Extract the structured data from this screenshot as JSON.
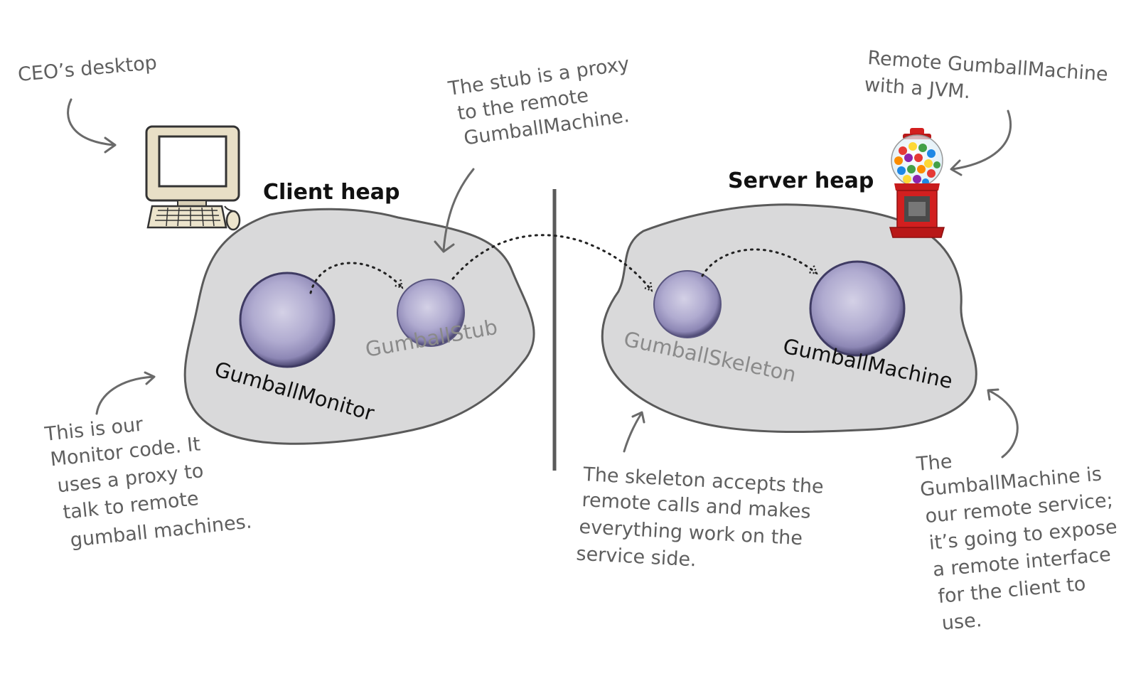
{
  "labels": {
    "ceo_desktop": "CEO’s desktop",
    "stub_note": [
      "The stub is a proxy",
      "to the remote",
      "GumballMachine."
    ],
    "remote_note": [
      "Remote GumballMachine",
      "with a JVM."
    ],
    "client_heap": "Client heap",
    "server_heap": "Server heap",
    "monitor_note": [
      "This is our",
      "Monitor code. It",
      "uses a proxy to",
      "talk to remote",
      "gumball machines."
    ],
    "skeleton_note": [
      "The skeleton accepts the",
      "remote calls and makes",
      "everything work on the",
      "service side."
    ],
    "machine_note": [
      "The",
      "GumballMachine is",
      "our remote service;",
      "it’s going to expose",
      "a remote interface",
      "for the client to",
      "use."
    ]
  },
  "objects": {
    "monitor": "GumballMonitor",
    "stub": "GumballStub",
    "skeleton": "GumballSkeleton",
    "machine": "GumballMachine"
  },
  "icons": {
    "computer": "desktop-computer-icon",
    "gumball_machine": "gumball-machine-icon"
  },
  "colors": {
    "heap_fill": "#d9d9da",
    "object_fill": "#9f9bc2",
    "handwriting": "#5f5f5f",
    "gumball_red": "#d21f1f"
  }
}
